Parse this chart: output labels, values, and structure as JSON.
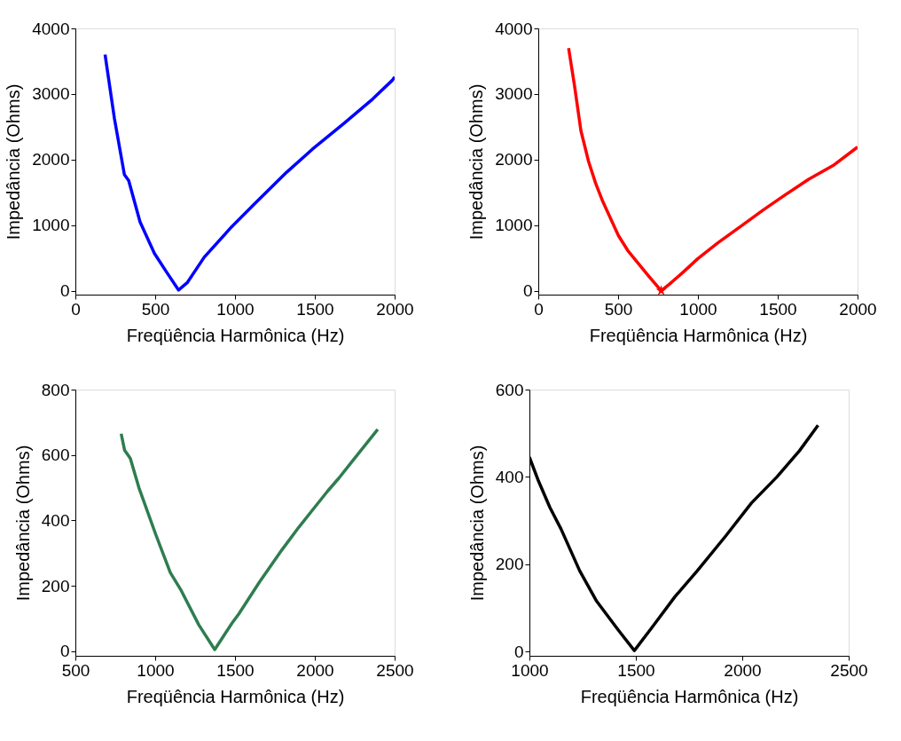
{
  "chart_data": [
    {
      "type": "line",
      "xlabel": "Freqüência Harmônica (Hz)",
      "ylabel": "Impedância (Ohms)",
      "xlim": [
        0,
        2000
      ],
      "ylim": [
        -60,
        4000
      ],
      "xticks": [
        0,
        500,
        1000,
        1500,
        2000
      ],
      "yticks": [
        0,
        1000,
        2000,
        3000,
        4000
      ],
      "grid": false,
      "series": [
        {
          "color": "#0000ff",
          "x": [
            186,
            245,
            307,
            334,
            405,
            495,
            575,
            646,
            700,
            807,
            977,
            1129,
            1325,
            1486,
            1682,
            1861,
            1986,
            2000
          ],
          "values": [
            3600,
            2620,
            1770,
            1680,
            1050,
            570,
            270,
            10,
            120,
            510,
            970,
            1340,
            1810,
            2160,
            2550,
            2920,
            3210,
            3260
          ]
        }
      ]
    },
    {
      "type": "line",
      "xlabel": "Freqüência Harmônica (Hz)",
      "ylabel": "Impedância (Ohms)",
      "xlim": [
        0,
        2000
      ],
      "ylim": [
        -60,
        4000
      ],
      "xticks": [
        0,
        500,
        1000,
        1500,
        2000
      ],
      "yticks": [
        0,
        1000,
        2000,
        3000,
        4000
      ],
      "grid": false,
      "series": [
        {
          "color": "#ff0000",
          "x": [
            190,
            226,
            267,
            315,
            359,
            404,
            502,
            564,
            689,
            770,
            822,
            911,
            1000,
            1125,
            1285,
            1409,
            1534,
            1694,
            1854,
            2000
          ],
          "values": [
            3700,
            3140,
            2440,
            1970,
            1640,
            1360,
            840,
            600,
            230,
            0,
            100,
            290,
            490,
            730,
            1010,
            1230,
            1440,
            1700,
            1920,
            2190
          ]
        },
        {
          "type": "scatter",
          "marker": "star",
          "color": "#ff0000",
          "x": [
            770
          ],
          "values": [
            0
          ]
        }
      ]
    },
    {
      "type": "line",
      "xlabel": "Freqüência Harmônica (Hz)",
      "ylabel": "Impedância (Ohms)",
      "xlim": [
        500,
        2500
      ],
      "ylim": [
        -14,
        800
      ],
      "xticks": [
        500,
        1000,
        1500,
        2000,
        2500
      ],
      "yticks": [
        0,
        200,
        400,
        600,
        800
      ],
      "grid": false,
      "series": [
        {
          "color": "#2e7d50",
          "x": [
            787,
            808,
            844,
            898,
            1005,
            1095,
            1158,
            1274,
            1373,
            1480,
            1525,
            1651,
            1794,
            1901,
            1991,
            2081,
            2152,
            2233,
            2394
          ],
          "values": [
            665,
            615,
            590,
            500,
            355,
            240,
            190,
            80,
            5,
            85,
            115,
            210,
            310,
            380,
            435,
            490,
            530,
            580,
            678
          ]
        }
      ]
    },
    {
      "type": "line",
      "xlabel": "Freqüência Harmônica (Hz)",
      "ylabel": "Impedância (Ohms)",
      "xlim": [
        1000,
        2500
      ],
      "ylim": [
        -10,
        600
      ],
      "xticks": [
        1000,
        1500,
        2000,
        2500
      ],
      "yticks": [
        0,
        200,
        400,
        600
      ],
      "grid": false,
      "series": [
        {
          "color": "#000000",
          "x": [
            1000,
            1043,
            1096,
            1149,
            1236,
            1316,
            1416,
            1493,
            1576,
            1683,
            1789,
            1923,
            2043,
            2163,
            2269,
            2356
          ],
          "values": [
            445,
            390,
            330,
            280,
            185,
            115,
            50,
            2,
            55,
            125,
            185,
            265,
            340,
            400,
            460,
            518
          ]
        }
      ]
    }
  ]
}
